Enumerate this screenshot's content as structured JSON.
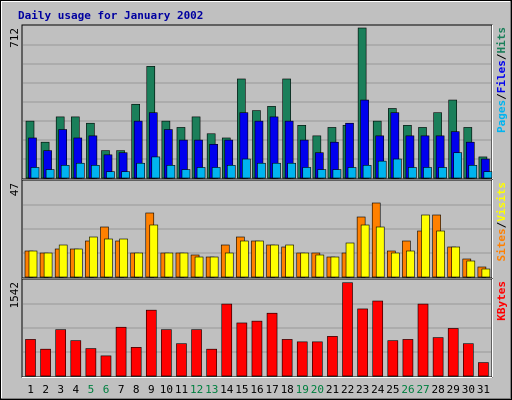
{
  "chart_data": {
    "type": "bar",
    "title": "Daily usage for January 2002",
    "colors": {
      "hits": "#1a7f5a",
      "files": "#0000ee",
      "pages": "#00b4f0",
      "visits": "#ffff00",
      "sites": "#ff8000",
      "kbytes": "#ff0000",
      "title": "#0000a0",
      "weekend_day": "#008040",
      "weekday": "#000000"
    },
    "categories": [
      "1",
      "2",
      "3",
      "4",
      "5",
      "6",
      "7",
      "8",
      "9",
      "10",
      "11",
      "12",
      "13",
      "14",
      "15",
      "16",
      "17",
      "18",
      "19",
      "20",
      "21",
      "22",
      "23",
      "24",
      "25",
      "26",
      "27",
      "28",
      "29",
      "30",
      "31"
    ],
    "weekend_days": [
      5,
      6,
      12,
      13,
      19,
      20,
      26,
      27
    ],
    "panels": [
      {
        "name": "top",
        "max_label": "712",
        "ylim": [
          0,
          712
        ],
        "legend": [
          "Pages",
          "Files",
          "Hits"
        ],
        "series": [
          {
            "name": "Hits",
            "values": [
              270,
              170,
              290,
              290,
              260,
              130,
              130,
              350,
              530,
              270,
              240,
              290,
              210,
              190,
              470,
              320,
              340,
              470,
              250,
              200,
              240,
              250,
              712,
              270,
              330,
              250,
              240,
              310,
              370,
              240,
              100
            ]
          },
          {
            "name": "Files",
            "values": [
              190,
              130,
              230,
              190,
              200,
              110,
              120,
              270,
              310,
              230,
              180,
              180,
              160,
              180,
              310,
              270,
              290,
              270,
              180,
              120,
              170,
              260,
              370,
              200,
              310,
              200,
              200,
              200,
              220,
              170,
              90
            ]
          },
          {
            "name": "Pages",
            "values": [
              50,
              40,
              60,
              70,
              60,
              30,
              30,
              70,
              100,
              60,
              40,
              50,
              50,
              60,
              90,
              70,
              70,
              70,
              50,
              40,
              40,
              50,
              60,
              80,
              90,
              50,
              50,
              50,
              120,
              60,
              30
            ]
          }
        ]
      },
      {
        "name": "middle",
        "max_label": "47",
        "ylim": [
          0,
          47
        ],
        "legend": [
          "Sites",
          "Visits"
        ],
        "series": [
          {
            "name": "Sites",
            "values": [
              13,
              12,
              14,
              14,
              18,
              25,
              18,
              12,
              32,
              12,
              12,
              11,
              10,
              16,
              20,
              18,
              16,
              15,
              12,
              12,
              10,
              12,
              30,
              37,
              13,
              18,
              23,
              31,
              15,
              9,
              5
            ]
          },
          {
            "name": "Visits",
            "values": [
              13,
              12,
              16,
              14,
              20,
              19,
              19,
              12,
              26,
              12,
              12,
              10,
              10,
              12,
              18,
              18,
              16,
              16,
              12,
              11,
              10,
              17,
              26,
              25,
              12,
              13,
              31,
              23,
              15,
              8,
              4
            ]
          }
        ]
      },
      {
        "name": "bottom",
        "max_label": "1542",
        "ylim": [
          0,
          1542
        ],
        "legend": [
          "KBytes"
        ],
        "series": [
          {
            "name": "KBytes",
            "values": [
              600,
              440,
              760,
              580,
              450,
              330,
              800,
              470,
              1080,
              760,
              530,
              760,
              440,
              1180,
              870,
              900,
              1030,
              600,
              560,
              560,
              650,
              1530,
              1100,
              1230,
              580,
              600,
              1180,
              630,
              780,
              530,
              220
            ]
          }
        ]
      }
    ]
  }
}
